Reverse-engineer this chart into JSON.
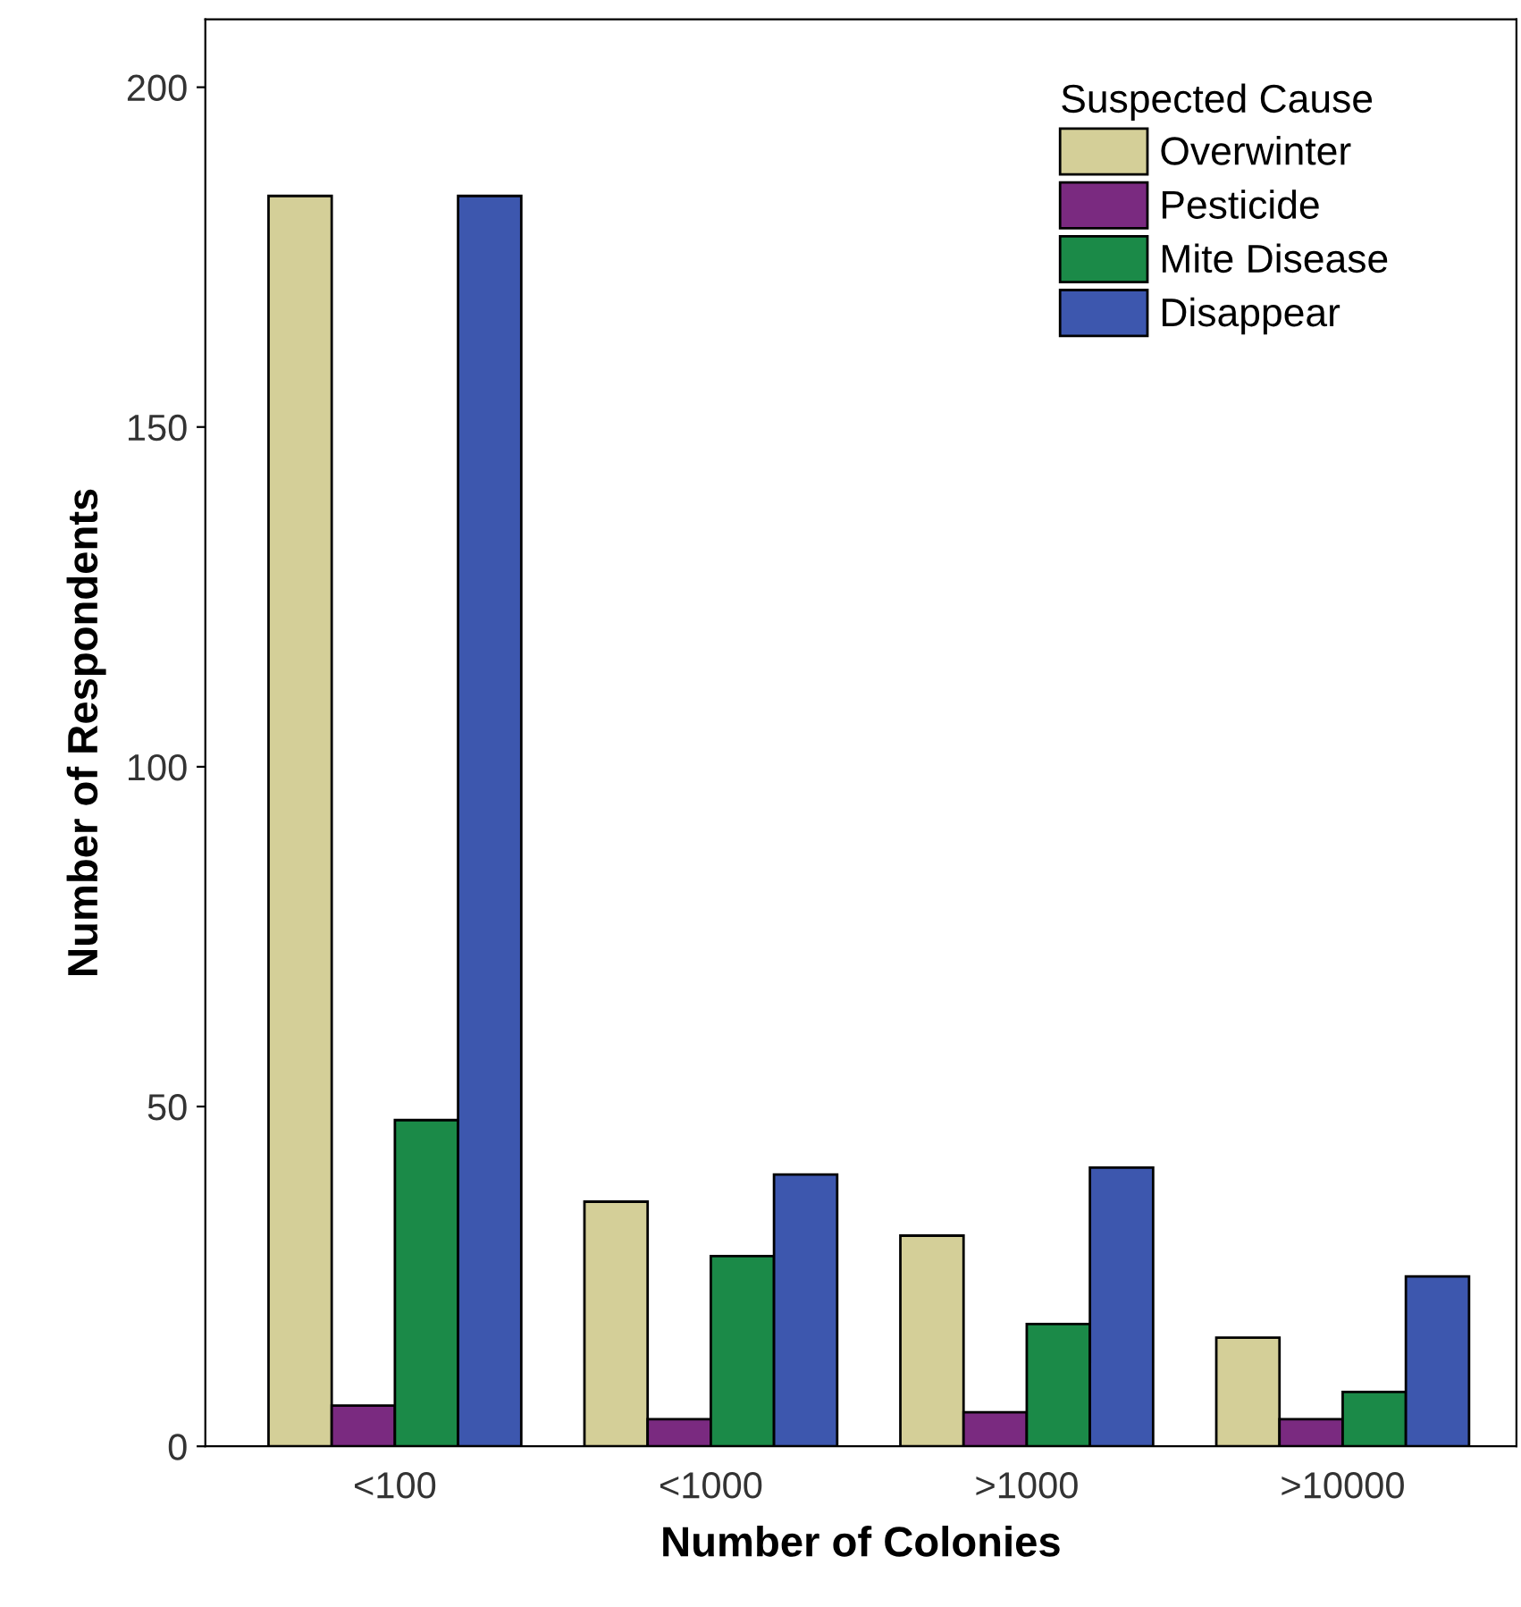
{
  "chart_data": {
    "type": "bar",
    "xlabel": "Number of Colonies",
    "ylabel": "Number of Respondents",
    "legend_title": "Suspected Cause",
    "categories": [
      "<100",
      "<1000",
      ">1000",
      ">10000"
    ],
    "series": [
      {
        "name": "Overwinter",
        "color": "#d4cf98",
        "values": [
          184,
          36,
          31,
          16
        ]
      },
      {
        "name": "Pesticide",
        "color": "#7a2a80",
        "values": [
          6,
          4,
          5,
          4
        ]
      },
      {
        "name": "Mite Disease",
        "color": "#1b8a48",
        "values": [
          48,
          28,
          18,
          8
        ]
      },
      {
        "name": "Disappear",
        "color": "#3d57ae",
        "values": [
          184,
          40,
          41,
          25
        ]
      }
    ],
    "ylim": [
      0,
      210
    ],
    "yticks": [
      0,
      50,
      100,
      150,
      200
    ],
    "grid": false,
    "legend": "top right"
  }
}
